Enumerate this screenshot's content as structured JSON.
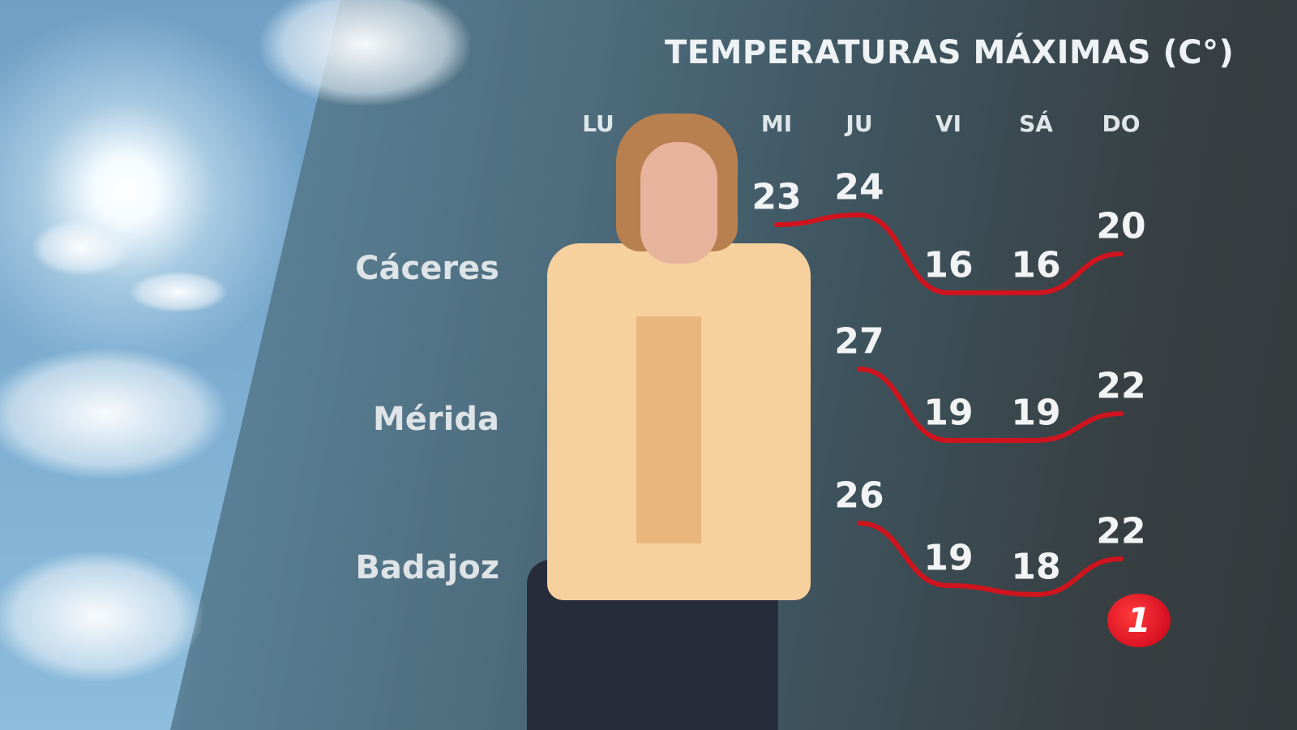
{
  "chart_data": {
    "type": "line",
    "title": "TEMPERATURAS MÁXIMAS (C°)",
    "categories": [
      "LU",
      "",
      "MI",
      "JU",
      "VI",
      "SÁ",
      "DO"
    ],
    "series": [
      {
        "name": "Cáceres",
        "values": [
          null,
          null,
          23,
          24,
          16,
          16,
          20
        ]
      },
      {
        "name": "Mérida",
        "values": [
          null,
          null,
          null,
          27,
          19,
          19,
          22
        ]
      },
      {
        "name": "Badajoz",
        "values": [
          null,
          null,
          null,
          26,
          19,
          18,
          22
        ]
      }
    ],
    "line_color": "#d0141e"
  },
  "logo": {
    "text": "1",
    "color": "#d9001b"
  }
}
